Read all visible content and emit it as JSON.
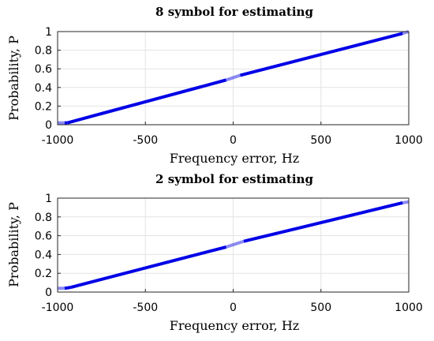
{
  "chart_data": [
    {
      "type": "line",
      "title": "8 symbol for estimating",
      "xlabel": "Frequency error, Hz",
      "ylabel": "Probability, P",
      "xlim": [
        -1000,
        1000
      ],
      "ylim": [
        0,
        1
      ],
      "xticks": [
        -1000,
        -500,
        0,
        500,
        1000
      ],
      "yticks": [
        0,
        0.2,
        0.4,
        0.6,
        0.8,
        1
      ],
      "xtick_labels": [
        "-1000",
        "-500",
        "0",
        "500",
        "1000"
      ],
      "ytick_labels": [
        "0",
        "0.2",
        "0.4",
        "0.6",
        "0.8",
        "1"
      ],
      "grid": true,
      "series": [
        {
          "color": "#0000e6",
          "x": [
            -1000,
            -960,
            -945,
            -40,
            40,
            965,
            1000
          ],
          "y": [
            0.02,
            0.02,
            0.02,
            0.48,
            0.53,
            0.98,
            1.0
          ]
        }
      ]
    },
    {
      "type": "line",
      "title": "2 symbol for estimating",
      "xlabel": "Frequency error, Hz",
      "ylabel": "Probability, P",
      "xlim": [
        -1000,
        1000
      ],
      "ylim": [
        0,
        1
      ],
      "xticks": [
        -1000,
        -500,
        0,
        500,
        1000
      ],
      "yticks": [
        0,
        0.2,
        0.4,
        0.6,
        0.8,
        1
      ],
      "xtick_labels": [
        "-1000",
        "-500",
        "0",
        "500",
        "1000"
      ],
      "ytick_labels": [
        "0",
        "0.2",
        "0.4",
        "0.6",
        "0.8",
        "1"
      ],
      "grid": true,
      "series": [
        {
          "color": "#0000e6",
          "x": [
            -1000,
            -960,
            -925,
            -40,
            60,
            965,
            1000
          ],
          "y": [
            0.04,
            0.04,
            0.05,
            0.48,
            0.54,
            0.95,
            0.96
          ]
        }
      ]
    }
  ]
}
